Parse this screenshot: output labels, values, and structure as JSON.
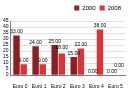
{
  "chart_data": {
    "type": "bar",
    "categories": [
      "Euro 0",
      "Euro 1",
      "Euro 2",
      "Euro 3",
      "Euro 4",
      "Euro 5"
    ],
    "series": [
      {
        "name": "2000",
        "color": "#8b1f22",
        "values": [
          33,
          24,
          25,
          15,
          0,
          0
        ],
        "value_labels": [
          "33.00",
          "24.00",
          "25.00",
          "15.00",
          "0.00",
          "0.00"
        ]
      },
      {
        "name": "2008",
        "color": "#d8343a",
        "values": [
          9,
          9,
          18,
          22,
          38,
          0
        ],
        "value_labels": [
          "9.00",
          "9.00",
          "18.00",
          "22.00",
          "38.00",
          "0.00"
        ]
      }
    ],
    "ylim": [
      0,
      45
    ],
    "yticks": [
      0,
      5,
      10,
      15,
      20,
      25,
      30,
      35,
      40,
      45
    ],
    "grid": true,
    "legend": "top-right",
    "data_labels": true
  }
}
